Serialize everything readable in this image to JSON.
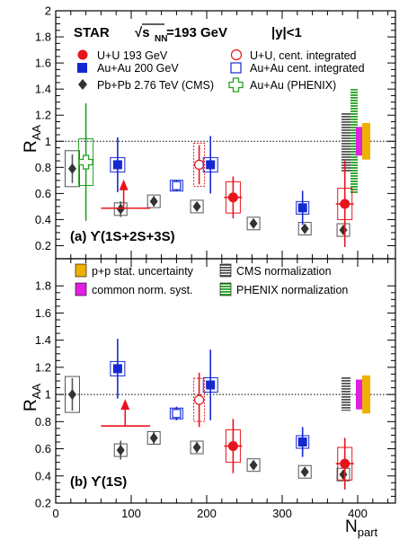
{
  "chart_data": [
    {
      "type": "scatter",
      "panel_label": "(a) ϒ(1S+2S+3S)",
      "header": "STAR   √sNN=193 GeV   |y|<1",
      "header_parts": {
        "experiment": "STAR",
        "sqrt": "√s",
        "sub": "NN",
        "energy": "=193 GeV",
        "rapidity": "|y|<1"
      },
      "ylabel": "R",
      "ylabel_sub": "AA",
      "xlim": [
        0,
        450
      ],
      "ylim": [
        0.1,
        2.0
      ],
      "yticks": [
        0.2,
        0.4,
        0.6,
        0.8,
        1.0,
        1.2,
        1.4,
        1.6,
        1.8,
        2.0
      ],
      "ytick_labels": [
        "0.2",
        "0.4",
        "0.6",
        "0.8",
        "1",
        "1.2",
        "1.4",
        "1.6",
        "1.8",
        "2"
      ],
      "legend": [
        {
          "label": "U+U 193 GeV",
          "marker": "filled-circle",
          "color": "#e8141c"
        },
        {
          "label": "U+U, cent. integrated",
          "marker": "open-circle",
          "color": "#e8141c"
        },
        {
          "label": "Au+Au 200 GeV",
          "marker": "filled-square",
          "color": "#1428d2"
        },
        {
          "label": "Au+Au cent. integrated",
          "marker": "open-square",
          "color": "#1428d2"
        },
        {
          "label": "Pb+Pb 2.76 TeV (CMS)",
          "marker": "diamond",
          "color": "#333333"
        },
        {
          "label": "Au+Au (PHENIX)",
          "marker": "open-cross",
          "color": "#22a022"
        }
      ],
      "series": [
        {
          "name": "U+U 193 GeV",
          "points": [
            {
              "x": 235,
              "y": 0.57,
              "yerr": 0.16,
              "xerr": 0
            },
            {
              "x": 383,
              "y": 0.52,
              "yerr": 0.33,
              "xerr": 0
            }
          ],
          "upper_limit": {
            "x": 90,
            "y": 0.68,
            "xmin": 60,
            "xmax": 125
          }
        },
        {
          "name": "U+U, cent. integrated",
          "points": [
            {
              "x": 190,
              "y": 0.82,
              "yerr": 0.15
            }
          ]
        },
        {
          "name": "Au+Au 200 GeV",
          "points": [
            {
              "x": 82,
              "y": 0.82,
              "yerr": 0.21
            },
            {
              "x": 205,
              "y": 0.82,
              "yerr": 0.22
            },
            {
              "x": 327,
              "y": 0.49,
              "yerr": 0.13
            }
          ]
        },
        {
          "name": "Au+Au cent. integrated",
          "points": [
            {
              "x": 160,
              "y": 0.66,
              "yerr": 0.04
            }
          ]
        },
        {
          "name": "Pb+Pb 2.76 TeV (CMS)",
          "points": [
            {
              "x": 22,
              "y": 0.79,
              "yerr": 0.11
            },
            {
              "x": 86,
              "y": 0.48,
              "yerr": 0.06
            },
            {
              "x": 130,
              "y": 0.54,
              "yerr": 0.04
            },
            {
              "x": 187,
              "y": 0.5,
              "yerr": 0.03
            },
            {
              "x": 262,
              "y": 0.37,
              "yerr": 0.02
            },
            {
              "x": 330,
              "y": 0.33,
              "yerr": 0.02
            },
            {
              "x": 381,
              "y": 0.32,
              "yerr": 0.02
            }
          ]
        },
        {
          "name": "Au+Au (PHENIX)",
          "points": [
            {
              "x": 40,
              "y": 0.84,
              "yerr": 0.45
            }
          ]
        }
      ],
      "norm_boxes": [
        {
          "label": "CMS normalization",
          "ymin": 0.76,
          "ymax": 1.22,
          "color": "#555555",
          "striped": true
        },
        {
          "label": "PHENIX normalization",
          "ymin": 0.6,
          "ymax": 1.4,
          "color": "#22a022",
          "striped": true
        },
        {
          "label": "common norm. syst.",
          "ymin": 0.89,
          "ymax": 1.11,
          "color": "#e020e0",
          "striped": false
        },
        {
          "label": "p+p stat. uncertainty",
          "ymin": 0.86,
          "ymax": 1.14,
          "color": "#f0b000",
          "striped": false
        }
      ]
    },
    {
      "type": "scatter",
      "panel_label": "(b) ϒ(1S)",
      "xlabel": "N",
      "xlabel_sub": "part",
      "ylabel": "R",
      "ylabel_sub": "AA",
      "xlim": [
        0,
        450
      ],
      "ylim": [
        0.2,
        2.0
      ],
      "xticks": [
        0,
        100,
        200,
        300,
        400
      ],
      "xtick_labels": [
        "0",
        "100",
        "200",
        "300",
        "400"
      ],
      "yticks": [
        0.2,
        0.4,
        0.6,
        0.8,
        1.0,
        1.2,
        1.4,
        1.6,
        1.8
      ],
      "ytick_labels": [
        "0.2",
        "0.4",
        "0.6",
        "0.8",
        "1",
        "1.2",
        "1.4",
        "1.6",
        "1.8"
      ],
      "legend": [
        {
          "label": "p+p stat. uncertainty",
          "marker": "box",
          "color": "#f0b000"
        },
        {
          "label": "CMS normalization",
          "marker": "box",
          "color": "#555555"
        },
        {
          "label": "common norm. syst.",
          "marker": "box",
          "color": "#e020e0"
        },
        {
          "label": "PHENIX normalization",
          "marker": "box",
          "color": "#22a022"
        }
      ],
      "series": [
        {
          "name": "U+U 193 GeV",
          "points": [
            {
              "x": 235,
              "y": 0.62,
              "yerr": 0.2
            },
            {
              "x": 383,
              "y": 0.49,
              "yerr": 0.19
            }
          ],
          "upper_limit": {
            "x": 92,
            "y": 0.94,
            "xmin": 60,
            "xmax": 125
          }
        },
        {
          "name": "U+U, cent. integrated",
          "points": [
            {
              "x": 190,
              "y": 0.96,
              "yerr": 0.2
            }
          ]
        },
        {
          "name": "Au+Au 200 GeV",
          "points": [
            {
              "x": 82,
              "y": 1.19,
              "yerr": 0.22
            },
            {
              "x": 205,
              "y": 1.07,
              "yerr": 0.26
            },
            {
              "x": 327,
              "y": 0.65,
              "yerr": 0.11
            }
          ]
        },
        {
          "name": "Au+Au cent. integrated",
          "points": [
            {
              "x": 160,
              "y": 0.86,
              "yerr": 0.05
            }
          ]
        },
        {
          "name": "Pb+Pb 2.76 TeV (CMS)",
          "points": [
            {
              "x": 22,
              "y": 1.0,
              "yerr": 0.12
            },
            {
              "x": 86,
              "y": 0.59,
              "yerr": 0.07
            },
            {
              "x": 130,
              "y": 0.68,
              "yerr": 0.05
            },
            {
              "x": 187,
              "y": 0.61,
              "yerr": 0.04
            },
            {
              "x": 262,
              "y": 0.48,
              "yerr": 0.02
            },
            {
              "x": 330,
              "y": 0.43,
              "yerr": 0.02
            },
            {
              "x": 381,
              "y": 0.41,
              "yerr": 0.02
            }
          ]
        }
      ],
      "norm_boxes": [
        {
          "label": "CMS normalization",
          "ymin": 0.88,
          "ymax": 1.13,
          "color": "#555555",
          "striped": true
        },
        {
          "label": "common norm. syst.",
          "ymin": 0.89,
          "ymax": 1.11,
          "color": "#e020e0",
          "striped": false
        },
        {
          "label": "p+p stat. uncertainty",
          "ymin": 0.86,
          "ymax": 1.14,
          "color": "#f0b000",
          "striped": false
        }
      ]
    }
  ]
}
